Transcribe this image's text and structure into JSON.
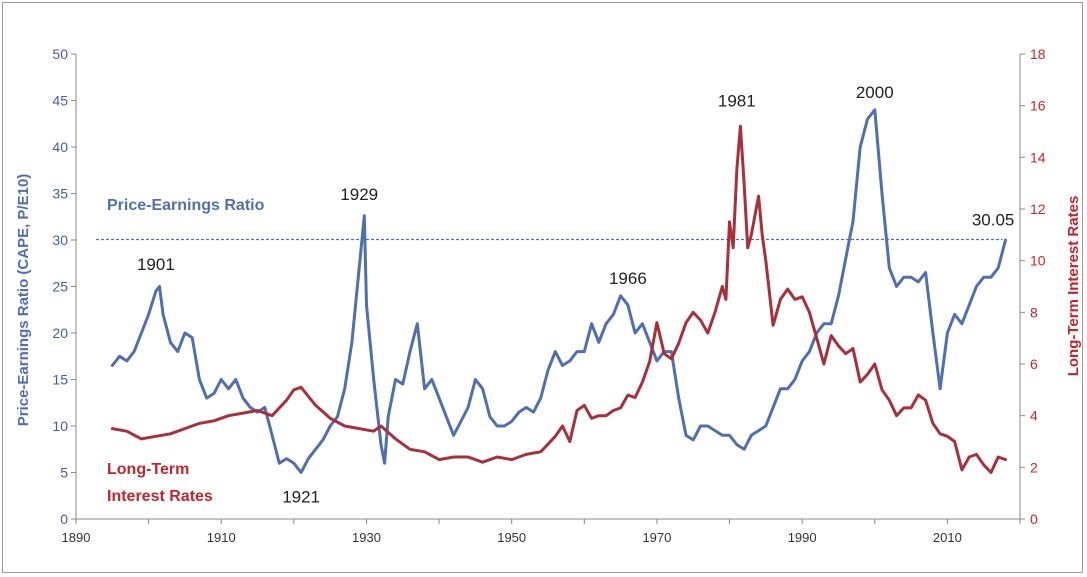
{
  "chart_data": {
    "type": "line",
    "title": "",
    "xlabel": "",
    "ylabel_left": "Price-Earnings Ratio (CAPE, P/E10)",
    "ylabel_right": "Long-Term Interest Rates",
    "xlim": [
      1890,
      2020
    ],
    "ylim_left": [
      0,
      50
    ],
    "ylim_right": [
      0,
      18
    ],
    "x_ticks": [
      "1890",
      "1910",
      "1930",
      "1950",
      "1970",
      "1990",
      "2010"
    ],
    "y_ticks_left": [
      "0",
      "5",
      "10",
      "15",
      "20",
      "25",
      "30",
      "35",
      "40",
      "45",
      "50"
    ],
    "y_ticks_right": [
      "0",
      "2",
      "4",
      "6",
      "8",
      "10",
      "12",
      "14",
      "16",
      "18"
    ],
    "grid": false,
    "colors": {
      "pe": "#4f6fb0",
      "rates": "#a8303a",
      "reference": "#4f6fb0"
    },
    "reference_line": {
      "axis": "left",
      "value": 30.05,
      "label": "30.05"
    },
    "series": [
      {
        "name": "Price-Earnings Ratio",
        "axis": "left",
        "color": "#4f6fb0",
        "x": [
          1895,
          1896,
          1897,
          1898,
          1899,
          1900,
          1901,
          1901.5,
          1902,
          1903,
          1904,
          1905,
          1906,
          1907,
          1908,
          1909,
          1910,
          1911,
          1912,
          1913,
          1914,
          1915,
          1916,
          1917,
          1918,
          1919,
          1920,
          1921,
          1922,
          1923,
          1924,
          1925,
          1926,
          1927,
          1928,
          1929,
          1929.7,
          1930,
          1931,
          1932,
          1932.5,
          1933,
          1934,
          1935,
          1936,
          1937,
          1938,
          1939,
          1940,
          1941,
          1942,
          1943,
          1944,
          1945,
          1946,
          1947,
          1948,
          1949,
          1950,
          1951,
          1952,
          1953,
          1954,
          1955,
          1956,
          1957,
          1958,
          1959,
          1960,
          1961,
          1962,
          1963,
          1964,
          1965,
          1966,
          1967,
          1968,
          1969,
          1970,
          1971,
          1972,
          1973,
          1974,
          1975,
          1976,
          1977,
          1978,
          1979,
          1980,
          1981,
          1982,
          1983,
          1984,
          1985,
          1986,
          1987,
          1988,
          1989,
          1990,
          1991,
          1992,
          1993,
          1994,
          1995,
          1996,
          1997,
          1998,
          1999,
          2000,
          2001,
          2002,
          2003,
          2004,
          2005,
          2006,
          2007,
          2008,
          2009,
          2010,
          2011,
          2012,
          2013,
          2014,
          2015,
          2016,
          2017,
          2018
        ],
        "y": [
          16.5,
          17.5,
          17,
          18,
          20,
          22,
          24.5,
          25,
          22,
          19,
          18,
          20,
          19.5,
          15,
          13,
          13.5,
          15,
          14,
          15,
          13,
          12,
          11.5,
          12,
          9,
          6,
          6.5,
          6,
          5,
          6.5,
          7.5,
          8.5,
          10,
          11,
          14,
          19,
          27,
          32.6,
          23,
          15,
          8,
          6,
          11,
          15,
          14.5,
          18,
          21,
          14,
          15,
          13,
          11,
          9,
          10.5,
          12,
          15,
          14,
          11,
          10,
          10,
          10.5,
          11.5,
          12,
          11.5,
          13,
          16,
          18,
          16.5,
          17,
          18,
          18,
          21,
          19,
          21,
          22,
          24,
          23,
          20,
          21,
          19,
          17,
          18,
          18,
          13,
          9,
          8.5,
          10,
          10,
          9.5,
          9,
          9,
          8,
          7.5,
          9,
          9.5,
          10,
          12,
          14,
          14,
          15,
          17,
          18,
          20,
          21,
          21,
          24,
          28,
          32,
          40,
          43,
          44,
          35,
          27,
          25,
          26,
          26,
          25.5,
          26.5,
          20,
          14,
          20,
          22,
          21,
          23,
          25,
          26,
          26,
          27,
          30
        ]
      },
      {
        "name": "Long-Term Interest Rates",
        "axis": "right",
        "color": "#a8303a",
        "x": [
          1895,
          1897,
          1899,
          1901,
          1903,
          1905,
          1907,
          1909,
          1911,
          1913,
          1915,
          1917,
          1919,
          1920,
          1921,
          1923,
          1925,
          1927,
          1929,
          1931,
          1932,
          1934,
          1936,
          1938,
          1940,
          1942,
          1944,
          1946,
          1948,
          1950,
          1952,
          1954,
          1955,
          1956,
          1957,
          1958,
          1959,
          1960,
          1961,
          1962,
          1963,
          1964,
          1965,
          1966,
          1967,
          1968,
          1969,
          1970,
          1971,
          1972,
          1973,
          1974,
          1975,
          1976,
          1977,
          1978,
          1979,
          1979.5,
          1980,
          1980.5,
          1981,
          1981.5,
          1982,
          1982.5,
          1983,
          1984,
          1984.5,
          1985,
          1986,
          1987,
          1988,
          1989,
          1990,
          1991,
          1992,
          1993,
          1994,
          1995,
          1996,
          1997,
          1998,
          1999,
          2000,
          2001,
          2002,
          2003,
          2004,
          2005,
          2006,
          2007,
          2008,
          2009,
          2010,
          2011,
          2012,
          2013,
          2014,
          2015,
          2016,
          2017,
          2018
        ],
        "y": [
          3.5,
          3.4,
          3.1,
          3.2,
          3.3,
          3.5,
          3.7,
          3.8,
          4.0,
          4.1,
          4.2,
          4.0,
          4.6,
          5.0,
          5.1,
          4.4,
          3.9,
          3.6,
          3.5,
          3.4,
          3.6,
          3.1,
          2.7,
          2.6,
          2.3,
          2.4,
          2.4,
          2.2,
          2.4,
          2.3,
          2.5,
          2.6,
          2.9,
          3.2,
          3.6,
          3.0,
          4.2,
          4.4,
          3.9,
          4.0,
          4.0,
          4.2,
          4.3,
          4.8,
          4.7,
          5.3,
          6.1,
          7.6,
          6.4,
          6.2,
          6.8,
          7.6,
          8.0,
          7.7,
          7.2,
          8.0,
          9.0,
          8.5,
          11.5,
          10.5,
          13.5,
          15.2,
          13.0,
          10.5,
          11.0,
          12.5,
          11.0,
          10.0,
          7.5,
          8.5,
          8.9,
          8.5,
          8.6,
          8.0,
          7.0,
          6.0,
          7.1,
          6.7,
          6.4,
          6.6,
          5.3,
          5.6,
          6.0,
          5.0,
          4.6,
          4.0,
          4.3,
          4.3,
          4.8,
          4.6,
          3.7,
          3.3,
          3.2,
          3.0,
          1.9,
          2.4,
          2.5,
          2.1,
          1.8,
          2.4,
          2.3
        ]
      }
    ],
    "annotations": [
      {
        "text": "1901",
        "x": 1901,
        "y": 25.5,
        "axis": "left"
      },
      {
        "text": "1921",
        "x": 1921,
        "y": 5,
        "axis": "left"
      },
      {
        "text": "1929",
        "x": 1929,
        "y": 33,
        "axis": "left"
      },
      {
        "text": "1966",
        "x": 1966,
        "y": 24,
        "axis": "left"
      },
      {
        "text": "1981",
        "x": 1981,
        "y": 15.5,
        "axis": "right"
      },
      {
        "text": "2000",
        "x": 2000,
        "y": 44,
        "axis": "left"
      },
      {
        "text": "30.05",
        "x": 2017,
        "y": 30.05,
        "axis": "left"
      }
    ],
    "legend_labels": {
      "pe": "Price-Earnings Ratio",
      "rates_line1": "Long-Term",
      "rates_line2": "Interest Rates"
    }
  }
}
